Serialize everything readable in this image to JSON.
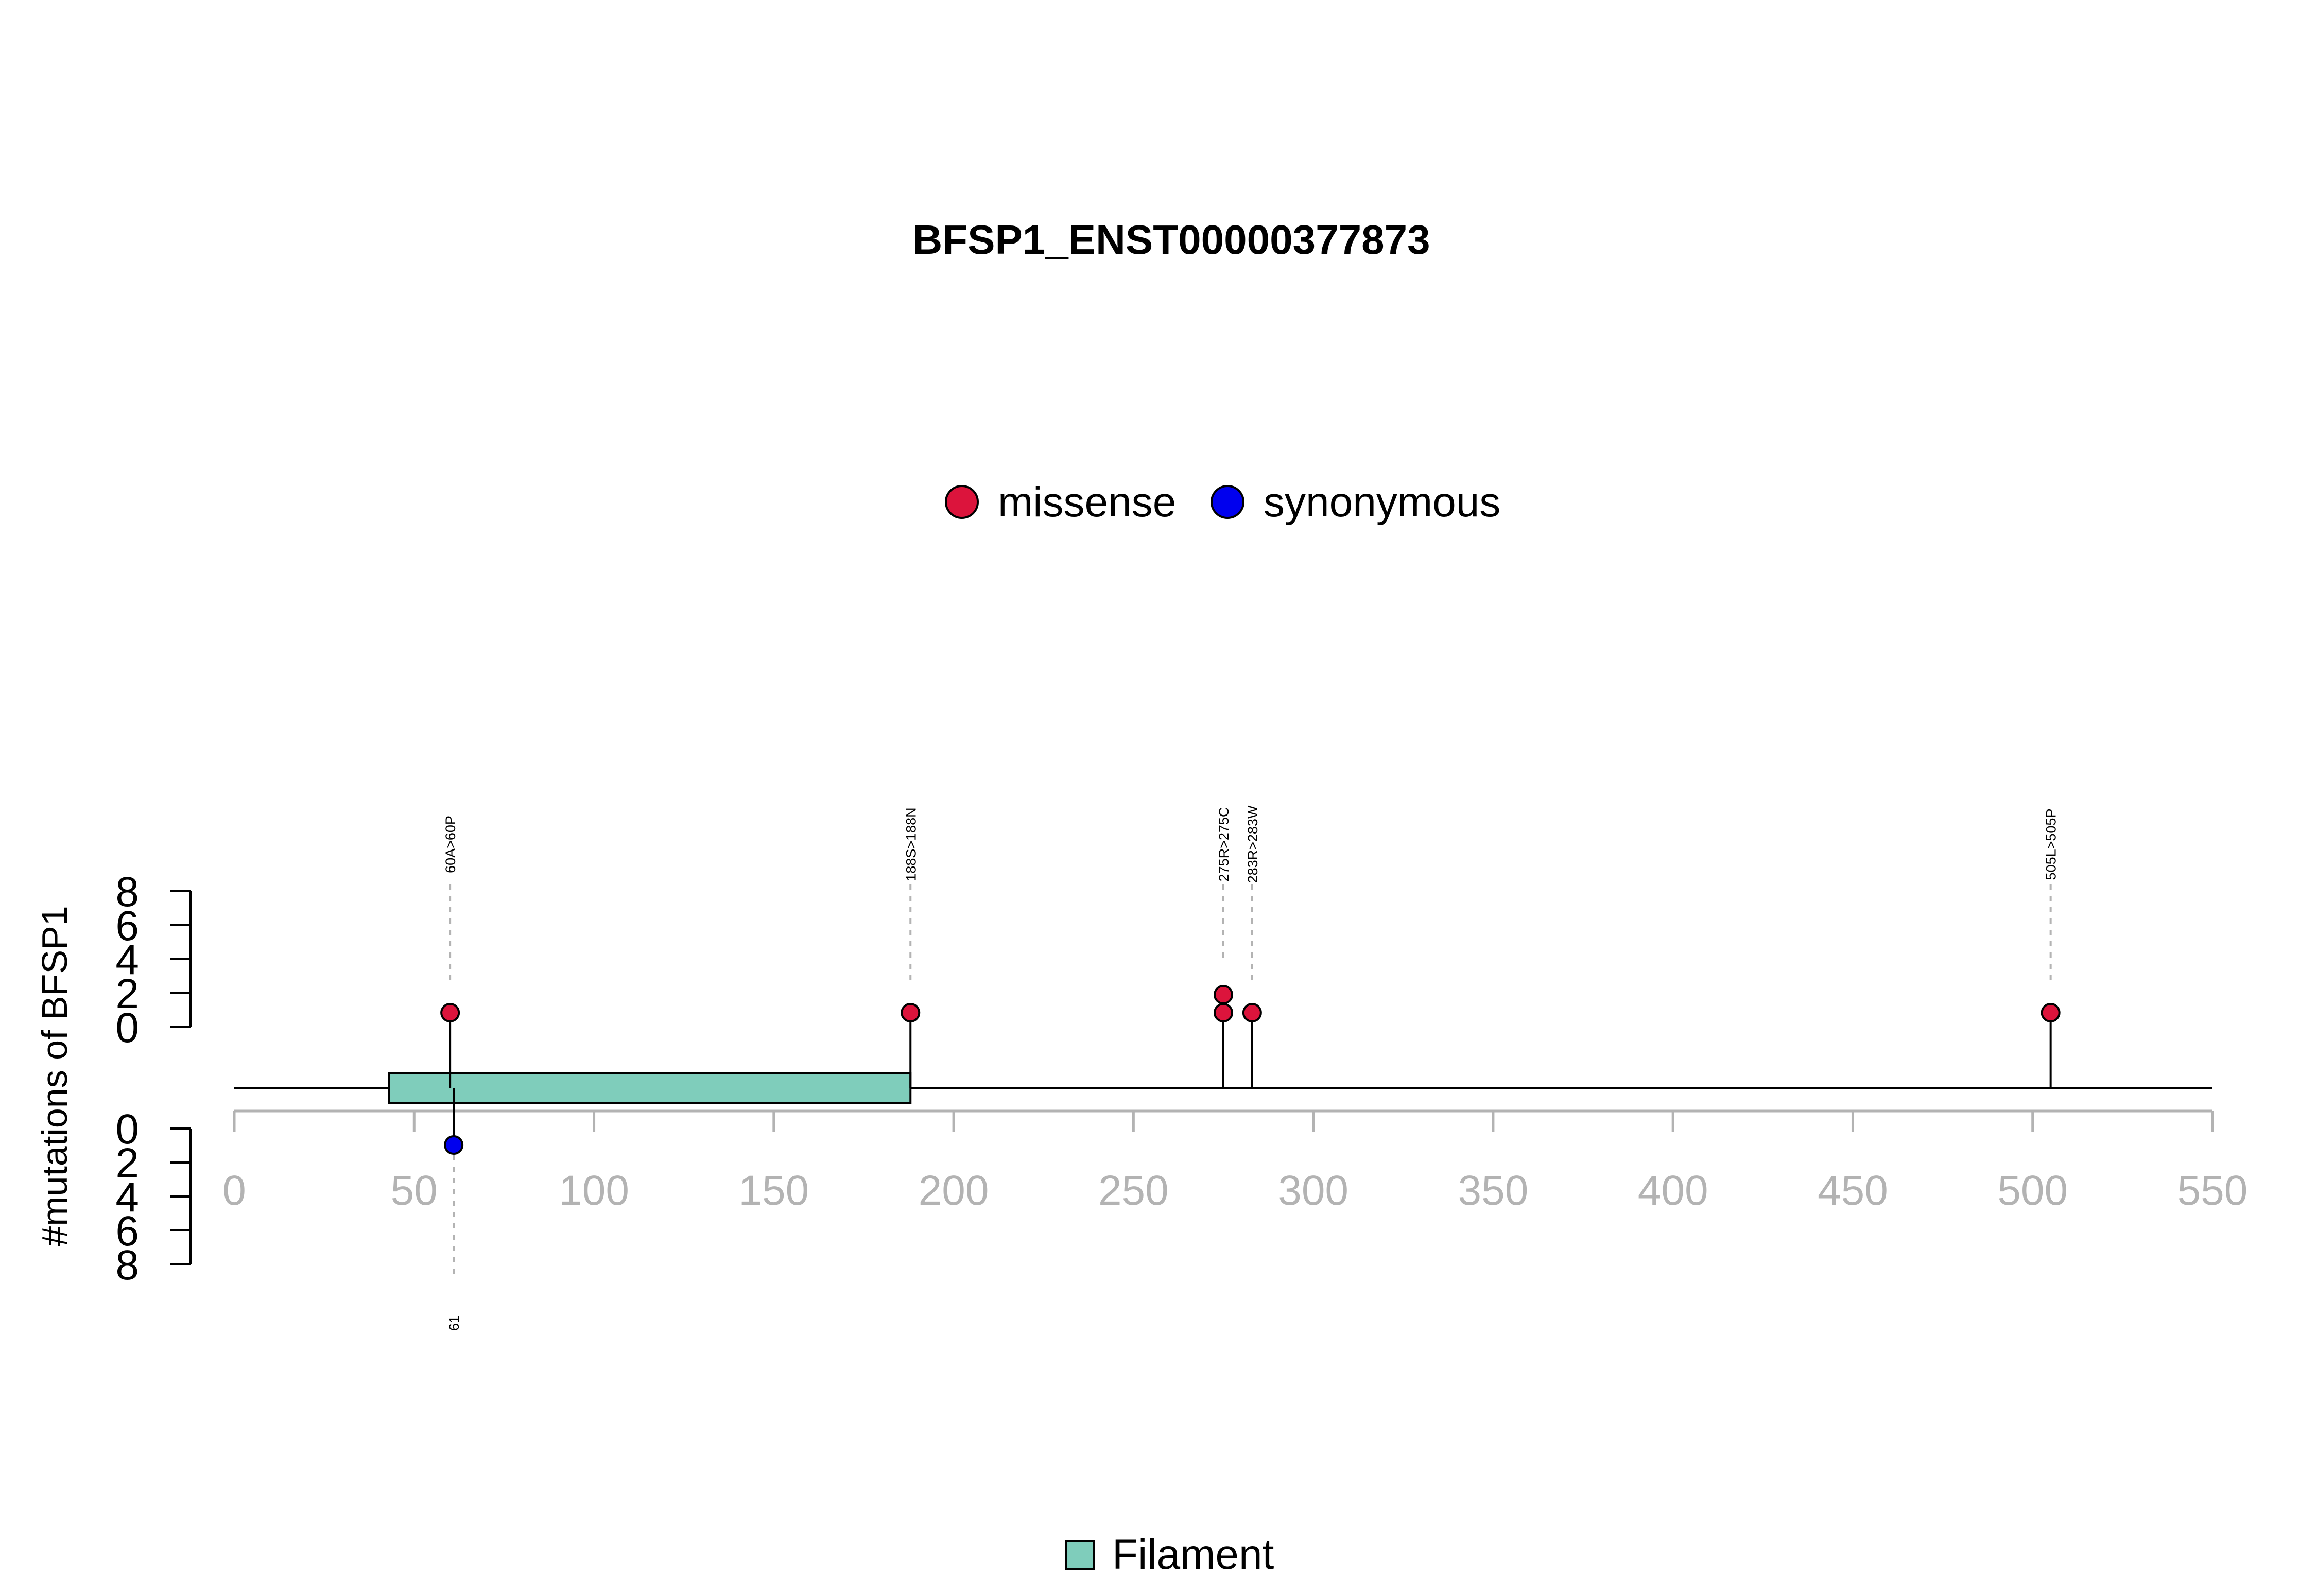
{
  "chart_data": {
    "type": "lollipop",
    "title": "BFSP1_ENST00000377873",
    "ylabel": "#mutations of BFSP1",
    "xlim": [
      0,
      550
    ],
    "x_ticks": [
      0,
      50,
      100,
      150,
      200,
      250,
      300,
      350,
      400,
      450,
      500,
      550
    ],
    "ylim_upper": [
      0,
      8
    ],
    "ylim_lower": [
      0,
      8
    ],
    "y_ticks": [
      0,
      2,
      4,
      6,
      8
    ],
    "legend": [
      {
        "label": "missense",
        "color": "#dc143c"
      },
      {
        "label": "synonymous",
        "color": "#0000ee"
      }
    ],
    "domains": [
      {
        "name": "Filament",
        "start": 43,
        "end": 188,
        "color": "#7fcdbb"
      }
    ],
    "domain_legend": [
      {
        "label": "Filament",
        "color": "#7fcdbb"
      }
    ],
    "mutations_upper": [
      {
        "position": 60,
        "label": "60A>60P",
        "count": 1,
        "type": "missense"
      },
      {
        "position": 188,
        "label": "188S>188N",
        "count": 1,
        "type": "missense"
      },
      {
        "position": 275,
        "label": "275R>275C",
        "count": 2,
        "type": "missense"
      },
      {
        "position": 283,
        "label": "283R>283W",
        "count": 1,
        "type": "missense"
      },
      {
        "position": 505,
        "label": "505L>505P",
        "count": 1,
        "type": "missense"
      }
    ],
    "mutations_lower": [
      {
        "position": 61,
        "label": "61",
        "count": 1,
        "type": "synonymous"
      }
    ]
  }
}
